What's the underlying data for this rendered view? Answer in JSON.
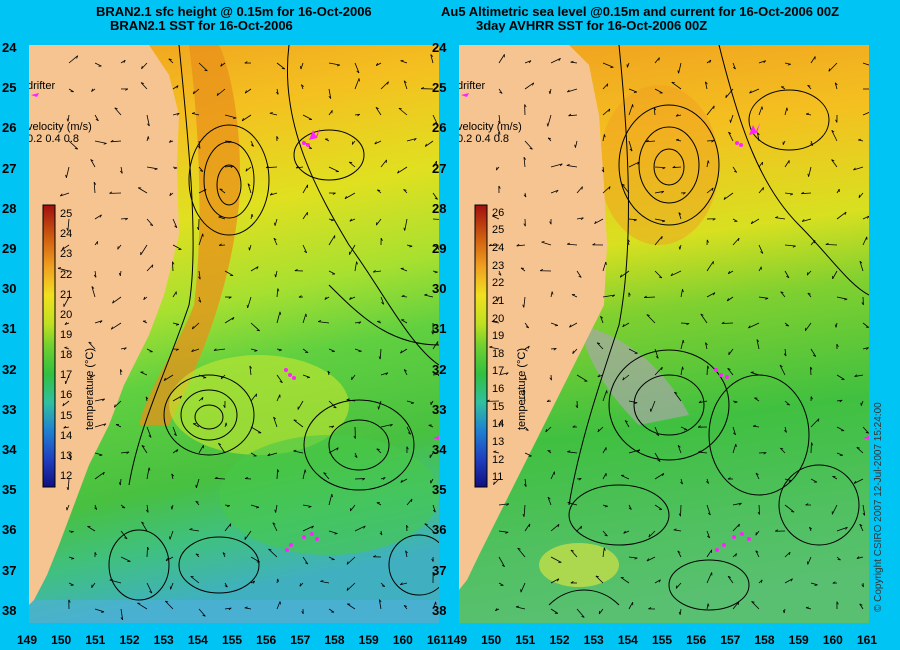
{
  "left_panel": {
    "title_line1": "BRAN2.1 sfc height @ 0.15m for 16-Oct-2006",
    "title_line2": "BRAN2.1 SST for 16-Oct-2006",
    "colorbar_ticks": [
      "25",
      "24",
      "23",
      "22",
      "21",
      "20",
      "19",
      "18",
      "17",
      "16",
      "15",
      "14",
      "13",
      "12"
    ]
  },
  "right_panel": {
    "title_line1": "Au5 Altimetric sea level  @0.15m and current for 16-Oct-2006 00Z",
    "title_line2": "3day AVHRR SST for 16-Oct-2006 00Z",
    "colorbar_ticks": [
      "26",
      "25",
      "24",
      "23",
      "22",
      "21",
      "20",
      "19",
      "18",
      "17",
      "16",
      "15",
      "14",
      "13",
      "12",
      "11"
    ]
  },
  "legend": {
    "drifter_label": "drifter",
    "velocity_label": "velocity (m/s)",
    "velocity_scale": "0.2 0.4 0.8",
    "colorbar_title": "temperature (°C)"
  },
  "y_axis_labels": [
    "24",
    "25",
    "26",
    "27",
    "28",
    "29",
    "30",
    "31",
    "32",
    "33",
    "34",
    "35",
    "36",
    "37",
    "38"
  ],
  "x_axis_labels": [
    "149",
    "150",
    "151",
    "152",
    "153",
    "154",
    "155",
    "156",
    "157",
    "158",
    "159",
    "160",
    "161"
  ],
  "copyright": "© Copyright CSIRO 2007  12-Jul-2007 15:24:00",
  "colors": {
    "background": "#00c4f4",
    "land": "#f6c490",
    "drifter": "#ff22ff"
  }
}
